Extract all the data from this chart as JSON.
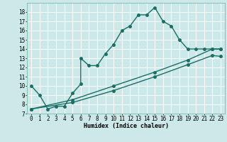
{
  "bg_color": "#cce8e8",
  "grid_color": "#b0d8d8",
  "line_color": "#1a6e64",
  "curve1_x": [
    0,
    1,
    2,
    3,
    4,
    5,
    6,
    6,
    7,
    8,
    9,
    10,
    11,
    12,
    13,
    14,
    15,
    16,
    17,
    18,
    19,
    20,
    21,
    22,
    23
  ],
  "curve1_y": [
    10,
    9,
    7.5,
    7.8,
    7.8,
    9.2,
    10.2,
    13.0,
    12.2,
    12.2,
    13.5,
    14.5,
    16.0,
    16.5,
    17.7,
    17.7,
    18.5,
    17.0,
    16.5,
    15.0,
    14.0,
    14.0,
    14.0,
    14.0,
    14.0
  ],
  "curve2_x": [
    0,
    5,
    10,
    15,
    19,
    22,
    23
  ],
  "curve2_y": [
    7.5,
    8.5,
    10.0,
    11.5,
    12.8,
    14.0,
    14.0
  ],
  "curve3_x": [
    0,
    5,
    10,
    15,
    19,
    22,
    23
  ],
  "curve3_y": [
    7.5,
    8.2,
    9.5,
    11.0,
    12.3,
    13.3,
    13.2
  ],
  "xlabel": "Humidex (Indice chaleur)",
  "xlim": [
    -0.5,
    23.5
  ],
  "ylim": [
    7,
    19
  ],
  "xticks": [
    0,
    1,
    2,
    3,
    4,
    5,
    6,
    7,
    8,
    9,
    10,
    11,
    12,
    13,
    14,
    15,
    16,
    17,
    18,
    19,
    20,
    21,
    22,
    23
  ],
  "yticks": [
    7,
    8,
    9,
    10,
    11,
    12,
    13,
    14,
    15,
    16,
    17,
    18
  ],
  "xlabel_fontsize": 6.0,
  "tick_fontsize": 5.5,
  "marker_size": 2.5,
  "line_width": 1.0
}
